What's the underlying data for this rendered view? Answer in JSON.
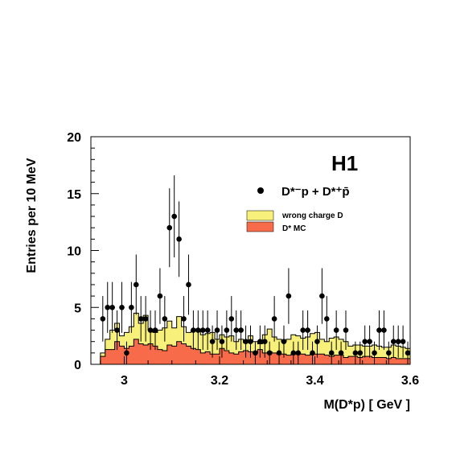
{
  "chart_data": {
    "type": "histogram",
    "experiment_label": "H1",
    "xlabel": "M(D*p) [ GeV ]",
    "ylabel": "Entries per 10 MeV",
    "xlim": [
      2.93,
      3.6
    ],
    "ylim": [
      0,
      20
    ],
    "x_ticks": [
      "3",
      "3.2",
      "3.4",
      "3.6"
    ],
    "x_tick_values": [
      3.0,
      3.2,
      3.4,
      3.6
    ],
    "y_ticks": [
      "0",
      "5",
      "10",
      "15",
      "20"
    ],
    "y_tick_values": [
      0,
      5,
      10,
      15,
      20
    ],
    "bin_edges_start": 2.95,
    "bin_width": 0.01,
    "legend": {
      "data_label": "D*⁻p + D*⁺p̄",
      "wrong_charge_label": "wrong charge D",
      "mc_label": "D* MC"
    },
    "colors": {
      "wrong_charge": "#f7f07a",
      "mc": "#f76b4a",
      "data": "#000000"
    },
    "series": [
      {
        "name": "wrong charge D",
        "kind": "histogram",
        "values": [
          1.0,
          2.2,
          3.0,
          3.6,
          2.5,
          2.8,
          3.3,
          4.5,
          3.6,
          4.3,
          3.0,
          2.8,
          3.0,
          3.2,
          3.8,
          3.2,
          4.2,
          3.3,
          2.8,
          3.0,
          3.1,
          2.6,
          2.7,
          2.8,
          2.2,
          2.6,
          2.4,
          2.5,
          2.0,
          2.2,
          1.9,
          2.5,
          2.0,
          1.8,
          2.6,
          3.1,
          2.4,
          2.2,
          2.0,
          2.2,
          2.6,
          2.5,
          2.3,
          2.4,
          2.7,
          2.8,
          2.2,
          2.0,
          2.3,
          2.4,
          2.2,
          2.0,
          1.6,
          1.7,
          1.7,
          1.6,
          1.6,
          1.7,
          1.6,
          1.5,
          1.5,
          1.7,
          1.6,
          1.5,
          1.4
        ]
      },
      {
        "name": "D* MC",
        "kind": "histogram",
        "values": [
          0.7,
          1.3,
          1.3,
          2.0,
          1.6,
          1.4,
          1.6,
          2.2,
          1.8,
          1.7,
          1.8,
          1.6,
          1.3,
          1.2,
          1.7,
          1.6,
          2.0,
          1.8,
          1.6,
          1.4,
          1.3,
          1.0,
          1.1,
          0.9,
          0.9,
          1.4,
          1.2,
          1.0,
          0.9,
          1.1,
          1.2,
          1.1,
          1.0,
          1.3,
          1.0,
          1.1,
          1.0,
          0.9,
          0.9,
          0.8,
          0.9,
          1.0,
          0.9,
          0.8,
          0.9,
          0.9,
          0.9,
          0.8,
          0.7,
          0.8,
          0.8,
          0.6,
          0.7,
          0.7,
          0.6,
          0.7,
          0.7,
          0.6,
          0.6,
          0.6,
          0.5,
          0.6,
          0.5,
          0.5,
          0.5
        ]
      },
      {
        "name": "D*⁻p + D*⁺p̄",
        "kind": "points_with_errors",
        "x": [
          2.955,
          2.965,
          2.975,
          2.985,
          2.995,
          3.005,
          3.015,
          3.025,
          3.035,
          3.045,
          3.055,
          3.065,
          3.075,
          3.085,
          3.095,
          3.105,
          3.115,
          3.125,
          3.135,
          3.145,
          3.155,
          3.165,
          3.175,
          3.185,
          3.195,
          3.205,
          3.215,
          3.225,
          3.235,
          3.245,
          3.255,
          3.265,
          3.275,
          3.285,
          3.295,
          3.305,
          3.315,
          3.325,
          3.335,
          3.345,
          3.355,
          3.365,
          3.375,
          3.385,
          3.395,
          3.405,
          3.415,
          3.425,
          3.435,
          3.445,
          3.455,
          3.465,
          3.475,
          3.485,
          3.495,
          3.505,
          3.515,
          3.525,
          3.535,
          3.545,
          3.555,
          3.565,
          3.575,
          3.585,
          3.595
        ],
        "y": [
          4,
          5,
          5,
          3,
          5,
          1,
          5,
          7,
          4,
          4,
          3,
          3,
          6,
          4,
          12,
          13,
          11,
          4,
          7,
          3,
          3,
          3,
          3,
          2,
          3,
          2,
          3,
          4,
          3,
          3,
          2,
          2,
          1,
          2,
          2,
          1,
          4,
          1,
          2,
          6,
          1,
          1,
          3,
          3,
          1,
          2,
          6,
          4,
          1,
          3,
          1,
          3,
          0,
          1,
          1,
          2,
          2,
          1,
          3,
          3,
          1,
          2,
          2,
          2,
          1
        ]
      }
    ]
  }
}
